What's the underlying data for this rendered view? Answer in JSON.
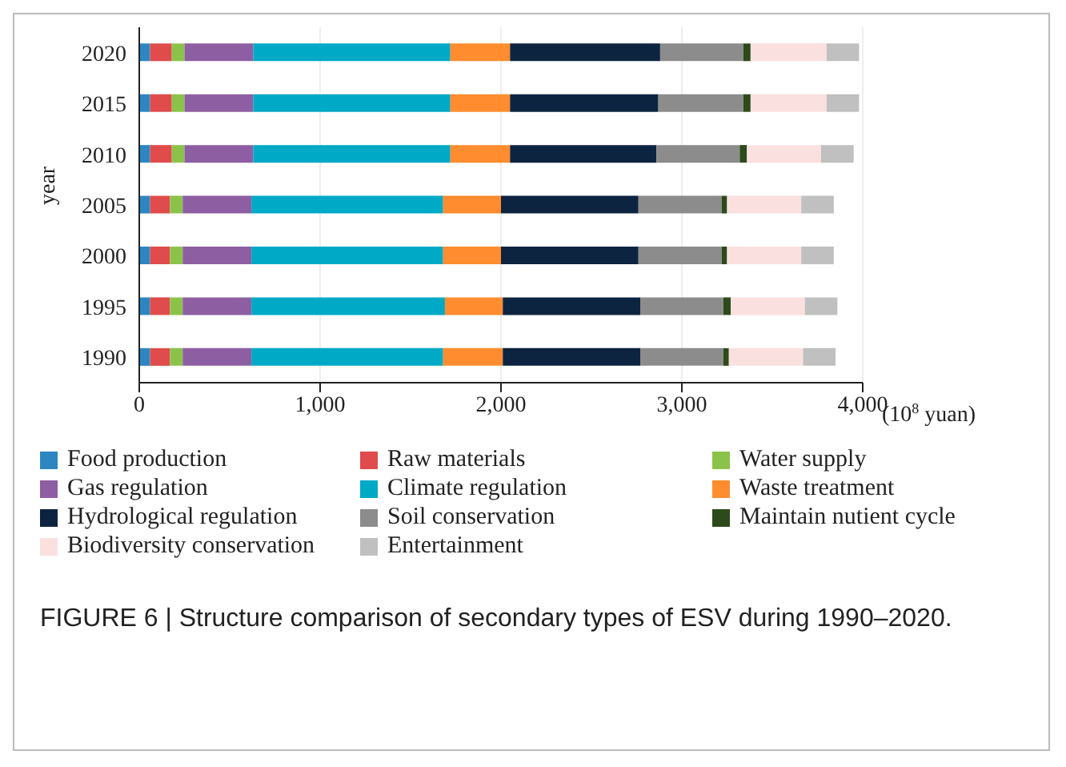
{
  "chart_data": {
    "type": "bar",
    "orientation": "horizontal",
    "stacked": true,
    "ylabel": "year",
    "xlabel": "(10$^{8}$ yuan)",
    "categories": [
      "2020",
      "2015",
      "2010",
      "2005",
      "2000",
      "1995",
      "1990"
    ],
    "series": [
      {
        "name": "Food production",
        "color": "#2e86c1",
        "values": [
          60,
          60,
          60,
          60,
          60,
          60,
          60
        ]
      },
      {
        "name": "Raw materials",
        "color": "#e04b4b",
        "values": [
          120,
          120,
          120,
          110,
          110,
          110,
          110
        ]
      },
      {
        "name": "Water supply",
        "color": "#8bc34a",
        "values": [
          70,
          70,
          70,
          70,
          70,
          70,
          70
        ]
      },
      {
        "name": "Gas regulation",
        "color": "#8e5ea2",
        "values": [
          380,
          380,
          380,
          380,
          380,
          380,
          380
        ]
      },
      {
        "name": "Climate regulation",
        "color": "#00a9c6",
        "values": [
          1090,
          1090,
          1090,
          1060,
          1060,
          1070,
          1060
        ]
      },
      {
        "name": "Waste treatment",
        "color": "#ff8c2e",
        "values": [
          330,
          330,
          330,
          320,
          320,
          320,
          330
        ]
      },
      {
        "name": "Hydrological regulation",
        "color": "#0d2440",
        "values": [
          830,
          820,
          810,
          760,
          760,
          760,
          760
        ]
      },
      {
        "name": "Soil conservation",
        "color": "#8c8c8c",
        "values": [
          460,
          470,
          460,
          460,
          460,
          460,
          460
        ]
      },
      {
        "name": "Maintain nutient cycle",
        "color": "#2d4a1a",
        "values": [
          40,
          40,
          40,
          30,
          30,
          40,
          30
        ]
      },
      {
        "name": "Biodiversity conservation",
        "color": "#fbe0e0",
        "values": [
          420,
          420,
          410,
          410,
          410,
          410,
          410
        ]
      },
      {
        "name": "Entertainment",
        "color": "#c0c0c0",
        "values": [
          180,
          180,
          180,
          180,
          180,
          180,
          180
        ]
      }
    ],
    "xlim": [
      0,
      4000
    ],
    "xticks": [
      0,
      {
        "value": 1000,
        "label": "1,000"
      },
      {
        "value": 2000,
        "label": "2,000"
      },
      {
        "value": 3000,
        "label": "3,000"
      },
      {
        "value": 4000,
        "label": "4,000"
      }
    ],
    "grid": "x",
    "legend": "bottom",
    "annotations": [
      "FIGURE 6 | Structure comparison of secondary types of ESV during 1990–2020."
    ]
  }
}
